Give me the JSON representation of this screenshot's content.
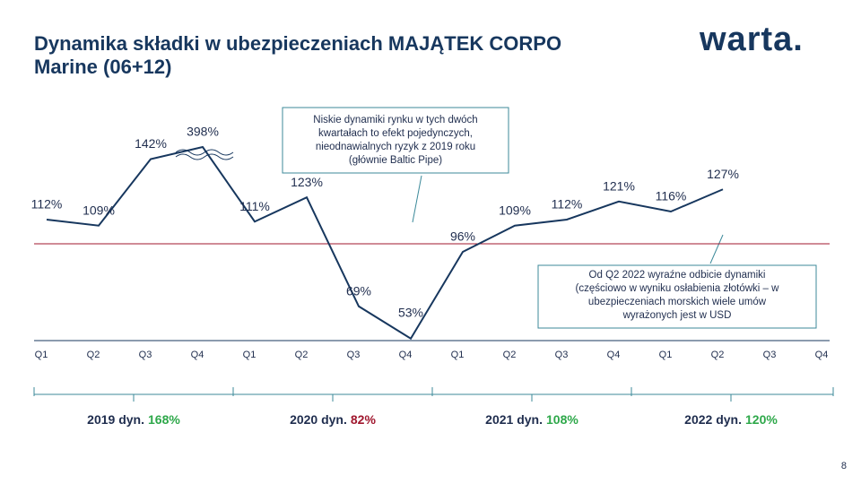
{
  "title_lines": [
    "Dynamika składki w ubezpieczeniach MAJĄTEK CORPO",
    "Marine (06+12)"
  ],
  "logo": "warta.",
  "page_number": "8",
  "chart_data": {
    "type": "line",
    "categories": [
      "Q1",
      "Q2",
      "Q3",
      "Q4",
      "Q1",
      "Q2",
      "Q3",
      "Q4",
      "Q1",
      "Q2",
      "Q3",
      "Q4",
      "Q1",
      "Q2",
      "Q3",
      "Q4"
    ],
    "series": [
      {
        "name": "Dynamika składki",
        "color": "#17375e",
        "values": [
          112,
          109,
          142,
          398,
          111,
          123,
          69,
          53,
          96,
          109,
          112,
          121,
          116,
          127,
          null,
          null
        ],
        "value_labels": [
          "112%",
          "109%",
          "142%",
          "398%",
          "111%",
          "123%",
          "69%",
          "53%",
          "96%",
          "109%",
          "112%",
          "121%",
          "116%",
          "127%",
          null,
          null
        ]
      }
    ],
    "ylim": [
      52,
      160
    ],
    "ybreak": [
      145,
      395
    ],
    "reference_line": {
      "value": 100,
      "color": "#a0172e"
    },
    "annotations": [
      {
        "lines": [
          "Niskie dynamiki rynku w tych dwóch",
          "kwartałach  to efekt pojedynczych,",
          "nieodnawialnych  ryzyk z 2019 roku",
          "(głównie Baltic Pipe)"
        ]
      },
      {
        "lines": [
          "Od Q2 2022 wyraźne odbicie dynamiki",
          "(częściowo w wyniku osłabienia złotówki – w",
          "ubezpieczeniach  morskich wiele umów",
          "wyrażonych jest w USD"
        ]
      }
    ],
    "groups": [
      {
        "label": "2019 dyn.",
        "value": 168,
        "value_label": "168%",
        "color": "#2ea84a"
      },
      {
        "label": "2020 dyn.",
        "value": 82,
        "value_label": "82%",
        "color": "#a0172e"
      },
      {
        "label": "2021 dyn.",
        "value": 108,
        "value_label": "108%",
        "color": "#2ea84a"
      },
      {
        "label": "2022 dyn.",
        "value": 120,
        "value_label": "120%",
        "color": "#2ea84a"
      }
    ]
  }
}
